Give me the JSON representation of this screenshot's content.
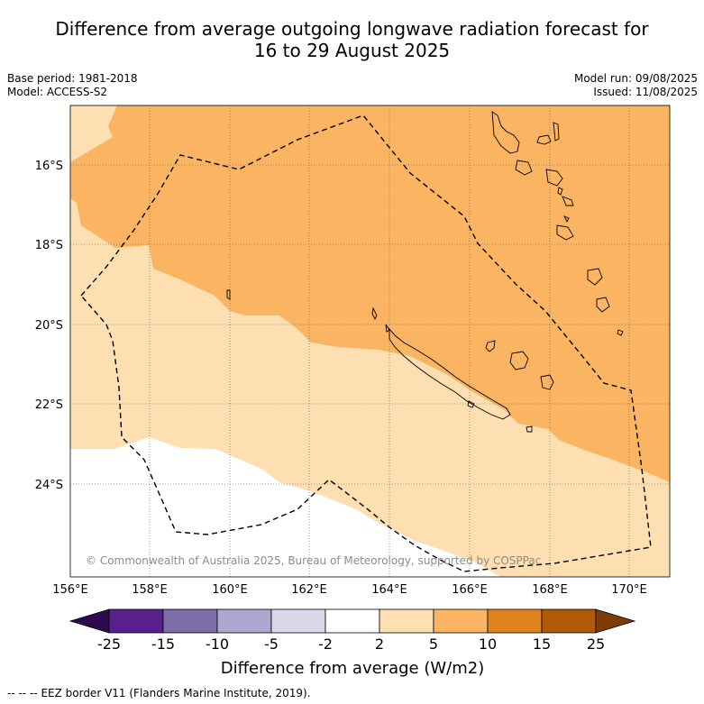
{
  "title": {
    "line1": "Difference from average outgoing longwave radiation forecast for",
    "line2": "16 to 29 August 2025"
  },
  "meta": {
    "base_period": "Base period: 1981-2018",
    "model": "Model: ACCESS-S2",
    "model_run": "Model run: 09/08/2025",
    "issued": "Issued: 11/08/2025"
  },
  "map": {
    "lon_ticks": [
      "156°E",
      "158°E",
      "160°E",
      "162°E",
      "164°E",
      "166°E",
      "168°E",
      "170°E"
    ],
    "lat_ticks": [
      "16°S",
      "18°S",
      "20°S",
      "22°S",
      "24°S"
    ],
    "copyright": "© Commonwealth of Australia 2025, Bureau of Meteorology, supported by COSPPac"
  },
  "colorbar": {
    "tick_labels": [
      "-25",
      "-15",
      "-10",
      "-5",
      "-2",
      "2",
      "5",
      "10",
      "15",
      "25"
    ],
    "colors": [
      "#2d0a4e",
      "#58208c",
      "#7e6fa9",
      "#aea7cf",
      "#d8d8ea",
      "#ffffff",
      "#fddfb2",
      "#fbb562",
      "#e0821c",
      "#b05a08",
      "#7b3c08"
    ],
    "label": "Difference from average (W/m2)"
  },
  "legend": {
    "eez_symbol": "--  --  --",
    "eez_label": "EEZ border V11 (Flanders Marine Institute, 2019)."
  }
}
